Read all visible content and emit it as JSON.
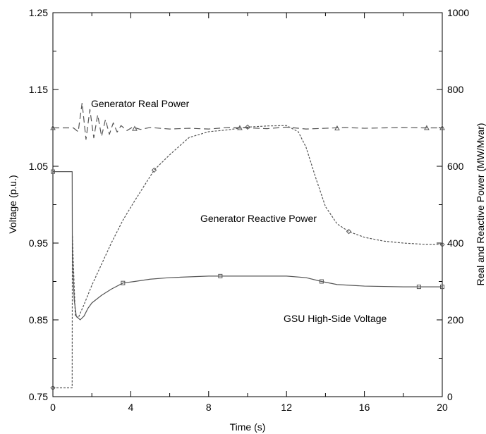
{
  "chart_data": {
    "type": "line",
    "xlabel": "Time (s)",
    "ylabel": "Voltage (p.u.)",
    "y2label": "Real and Reactive Power (MW/Mvar)",
    "xlim": [
      0,
      20
    ],
    "ylim": [
      0.75,
      1.25
    ],
    "y2lim": [
      0,
      1000
    ],
    "xticks": [
      "0",
      "4",
      "8",
      "12",
      "16",
      "20"
    ],
    "yticks": [
      "0.75",
      "0.85",
      "0.95",
      "1.05",
      "1.15",
      "1.25"
    ],
    "y2ticks": [
      "0",
      "200",
      "400",
      "600",
      "800",
      "1000"
    ],
    "grid": false,
    "series": [
      {
        "name": "GSU High-Side Voltage",
        "axis": "left",
        "style": "solid",
        "color": "#555555",
        "x": [
          0,
          0.99,
          1.0,
          1.05,
          1.1,
          1.2,
          1.4,
          1.6,
          1.8,
          2.0,
          2.5,
          3.0,
          3.6,
          4.2,
          5.0,
          6.0,
          8.0,
          10.0,
          12.0,
          13.0,
          13.8,
          14.6,
          16.0,
          18.0,
          20.0
        ],
        "y": [
          1.043,
          1.043,
          0.93,
          0.9,
          0.875,
          0.855,
          0.85,
          0.855,
          0.865,
          0.872,
          0.882,
          0.89,
          0.898,
          0.9,
          0.903,
          0.905,
          0.907,
          0.907,
          0.907,
          0.905,
          0.9,
          0.896,
          0.894,
          0.893,
          0.893
        ],
        "markers_x": [
          0,
          3.6,
          8.6,
          13.8,
          18.8,
          20.0
        ],
        "markers_y": [
          1.043,
          0.898,
          0.907,
          0.9,
          0.893,
          0.893
        ],
        "marker": "square"
      },
      {
        "name": "Generator Real Power",
        "axis": "right",
        "style": "dashed",
        "color": "#555555",
        "x": [
          0,
          0.99,
          1.05,
          1.3,
          1.5,
          1.7,
          1.9,
          2.1,
          2.3,
          2.5,
          2.7,
          2.9,
          3.1,
          3.3,
          3.5,
          3.8,
          4.1,
          4.5,
          5.0,
          6.0,
          7.0,
          8.0,
          9.0,
          10.0,
          11.0,
          12.0,
          13.0,
          14.0,
          15.0,
          16.0,
          17.0,
          18.0,
          19.0,
          20.0
        ],
        "y": [
          700,
          700,
          700,
          690,
          765,
          670,
          748,
          674,
          734,
          678,
          722,
          683,
          713,
          689,
          706,
          693,
          702,
          696,
          701,
          697,
          699,
          697,
          701,
          700,
          698,
          702,
          697,
          699,
          701,
          699,
          700,
          701,
          700,
          700
        ],
        "markers_x": [
          0,
          4.2,
          9.6,
          14.6,
          19.2,
          20.0
        ],
        "markers_y": [
          700,
          698,
          700,
          699,
          700,
          700
        ],
        "marker": "triangle"
      },
      {
        "name": "Generator Reactive Power",
        "axis": "right",
        "style": "dotted",
        "color": "#555555",
        "x": [
          0,
          0.99,
          1.0,
          1.15,
          1.3,
          1.6,
          2.0,
          2.5,
          3.0,
          3.6,
          4.2,
          5.2,
          6.0,
          7.0,
          8.0,
          9.0,
          10.0,
          11.0,
          12.0,
          12.6,
          13.0,
          13.5,
          14.0,
          14.6,
          15.2,
          16.0,
          17.0,
          18.0,
          19.0,
          20.0
        ],
        "y": [
          23,
          23,
          420,
          210,
          205,
          240,
          290,
          345,
          400,
          460,
          510,
          590,
          630,
          675,
          690,
          695,
          702,
          705,
          706,
          690,
          650,
          570,
          495,
          450,
          430,
          415,
          405,
          400,
          397,
          396
        ],
        "markers_x": [
          0,
          5.2,
          10.0,
          15.2,
          20.0
        ],
        "markers_y": [
          23,
          590,
          702,
          430,
          396
        ],
        "marker": "diamond"
      }
    ],
    "annotations": [
      {
        "text": "Generator Real Power",
        "series": "Generator Real Power"
      },
      {
        "text": "Generator Reactive Power",
        "series": "Generator Reactive Power"
      },
      {
        "text": "GSU High-Side Voltage",
        "series": "GSU High-Side Voltage"
      }
    ]
  }
}
